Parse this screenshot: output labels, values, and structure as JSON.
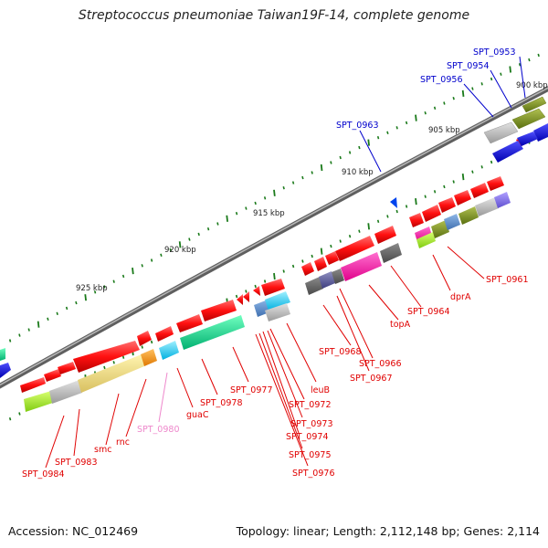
{
  "title": "Streptococcus pneumoniae Taiwan19F-14, complete genome",
  "footer": {
    "accession": "Accession: NC_012469",
    "summary": "Topology: linear; Length: 2,112,148 bp; Genes: 2,114"
  },
  "colors": {
    "backbone": "#7a7a7a",
    "ticks": "#1a7a1a",
    "gene_arrow": "#ff1a1a",
    "label_red": "#e00000",
    "label_blue": "#0000cc",
    "label_pink": "#ee88cc",
    "legend_blue": "#0000ff"
  },
  "kbp_labels": [
    "900 kbp",
    "905 kbp",
    "910 kbp",
    "915 kbp",
    "920 kbp",
    "925 kbp"
  ],
  "gene_labels_top": [
    "SPT_0953",
    "SPT_0954",
    "SPT_0956",
    "SPT_0963"
  ],
  "gene_labels_bottom": [
    "SPT_0961",
    "dprA",
    "SPT_0964",
    "topA",
    "SPT_0966",
    "SPT_0967",
    "SPT_0968",
    "leuB",
    "SPT_0972",
    "SPT_0973",
    "SPT_0974",
    "SPT_0975",
    "SPT_0976",
    "SPT_0977",
    "SPT_0978",
    "guaC",
    "SPT_0980",
    "rnc",
    "smc",
    "SPT_0983",
    "SPT_0984"
  ]
}
